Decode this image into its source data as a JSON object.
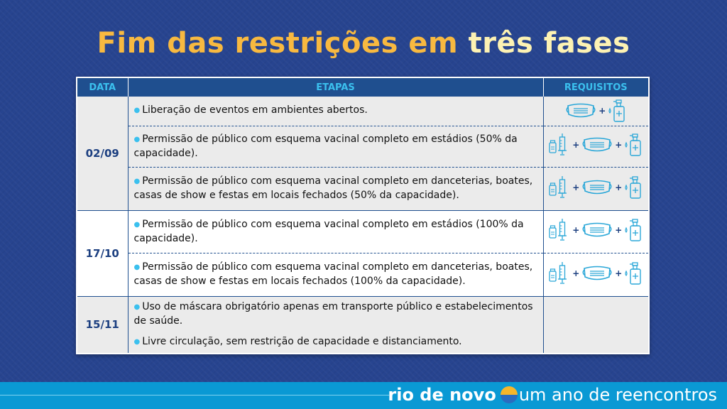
{
  "title": {
    "part1": "Fim das restrições em",
    "part2": "três fases"
  },
  "headers": {
    "date": "DATA",
    "steps": "ETAPAS",
    "requirements": "REQUISITOS"
  },
  "rows": [
    {
      "date": "02/09",
      "steps": [
        "Liberação de eventos em ambientes abertos.",
        "Permissão de público com esquema vacinal completo em estádios (50% da capacidade).",
        "Permissão de público com esquema vacinal completo em danceterias, boates, casas de show e festas em locais fechados (50% da capacidade)."
      ]
    },
    {
      "date": "17/10",
      "steps": [
        "Permissão de público com esquema vacinal completo em estádios (100% da capacidade).",
        "Permissão de público com esquema vacinal completo em danceterias, boates, casas de show e festas em locais fechados (100% da capacidade)."
      ]
    },
    {
      "date": "15/11",
      "steps": [
        "Uso de máscara obrigatório apenas em transporte público e estabelecimentos de saúde.",
        "Livre circulação, sem restrição de capacidade e distanciamento."
      ]
    }
  ],
  "requirements_icons": {
    "row1": [
      "mask-icon",
      "sanitizer-icon"
    ],
    "row2_to_5": [
      "vaccine-icon",
      "mask-icon",
      "sanitizer-icon"
    ],
    "plus": "+"
  },
  "footer": {
    "brand": "rio de novo",
    "slogan": "um ano de reencontros"
  },
  "colors": {
    "background": "#27448f",
    "title": "#f8b940",
    "title_highlight": "#fdf2b3",
    "header": "#1f4f8f",
    "accent": "#3bc0ee",
    "footer": "#0a99d4"
  }
}
